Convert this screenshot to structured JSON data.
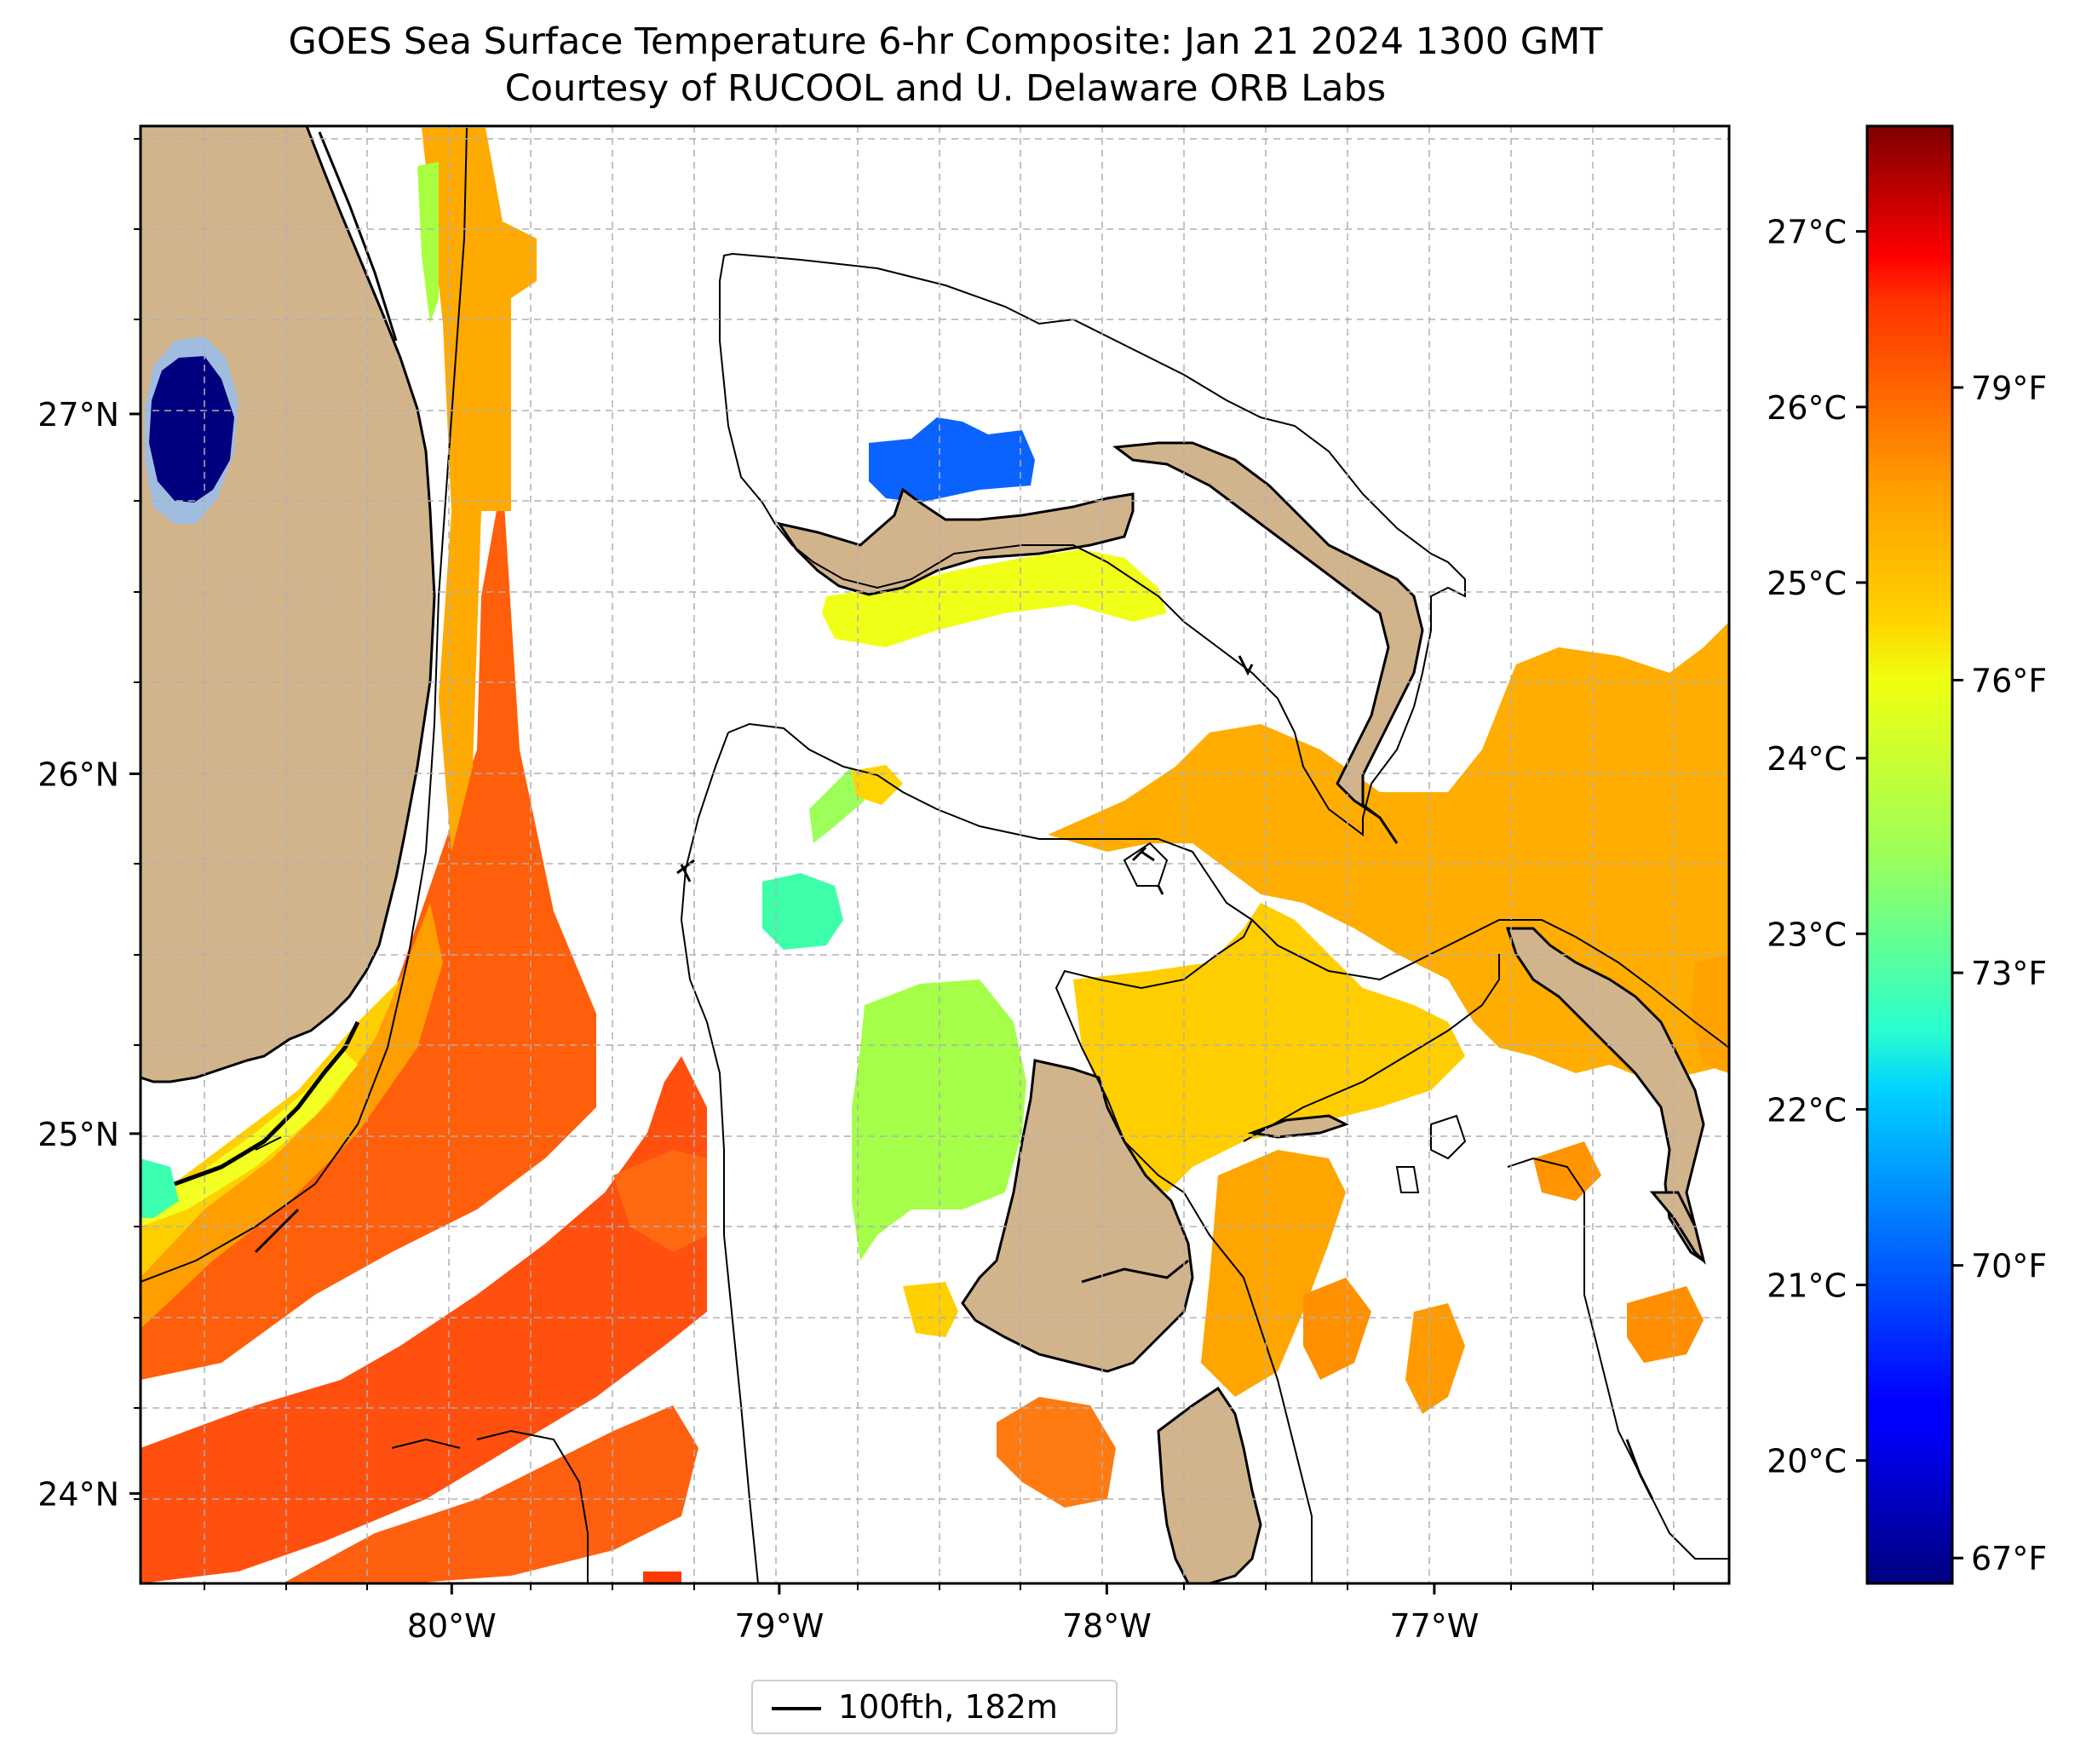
{
  "title": {
    "line1": "GOES Sea Surface Temperature 6-hr Composite: Jan 21 2024 1300 GMT",
    "line2": "Courtesy of RUCOOL and U. Delaware ORB Labs"
  },
  "map": {
    "lon_range": [
      -80.95,
      -76.1
    ],
    "lat_range": [
      23.75,
      27.8
    ],
    "lat_ticks": [
      {
        "value": 24,
        "label": "24°N"
      },
      {
        "value": 25,
        "label": "25°N"
      },
      {
        "value": 26,
        "label": "26°N"
      },
      {
        "value": 27,
        "label": "27°N"
      }
    ],
    "lon_ticks": [
      {
        "value": -80,
        "label": "80°W"
      },
      {
        "value": -79,
        "label": "79°W"
      },
      {
        "value": -78,
        "label": "78°W"
      },
      {
        "value": -77,
        "label": "77°W"
      }
    ],
    "gridlines": "dashed",
    "land_color": "#d2b48c",
    "regions": [
      "Florida",
      "Grand Bahama",
      "Great Abaco",
      "Andros",
      "Eleuthera"
    ]
  },
  "colorbar": {
    "colormap": "jet",
    "range_c": [
      19.3,
      27.6
    ],
    "celsius_ticks": [
      "20°C",
      "21°C",
      "22°C",
      "23°C",
      "24°C",
      "25°C",
      "26°C",
      "27°C"
    ],
    "fahrenheit_ticks": [
      "67°F",
      "70°F",
      "73°F",
      "76°F",
      "79°F"
    ]
  },
  "legend": {
    "label": "100fth, 182m",
    "line_color": "#000000"
  },
  "colors": {
    "frame": "#000000",
    "grid": "#b0b0b0",
    "sst_warm": "#ff5a0a",
    "sst_orange": "#ff9e00",
    "sst_yellow": "#ffd400",
    "sst_green": "#9cff5a",
    "sst_teal": "#3dffb8",
    "sst_blue": "#0a63ff",
    "sst_cold": "#00007f",
    "sst_lightblue": "#a0bde0"
  }
}
